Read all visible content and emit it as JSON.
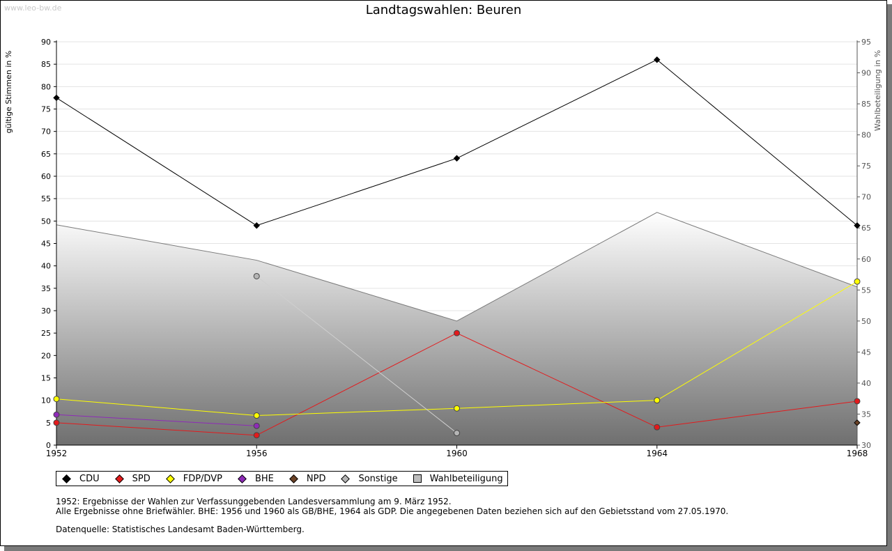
{
  "watermark": "www.leo-bw.de",
  "chart_data": {
    "type": "line",
    "title": "Landtagswahlen: Beuren",
    "ylabel_left": "gültige Stimmen in %",
    "ylabel_right": "Wahlbeteiligung in %",
    "x": [
      "1952",
      "1956",
      "1960",
      "1964",
      "1968"
    ],
    "ylim_left": [
      0,
      90
    ],
    "ylim_right": [
      30,
      95
    ],
    "yticks_left": [
      "0",
      "5",
      "10",
      "15",
      "20",
      "25",
      "30",
      "35",
      "40",
      "45",
      "50",
      "55",
      "60",
      "65",
      "70",
      "75",
      "80",
      "85",
      "90"
    ],
    "yticks_right": [
      "30",
      "35",
      "40",
      "45",
      "50",
      "55",
      "60",
      "65",
      "70",
      "75",
      "80",
      "85",
      "90",
      "95"
    ],
    "grid": true,
    "legend_position": "bottom-left",
    "series": [
      {
        "name": "CDU",
        "color": "#000000",
        "values": [
          77.5,
          49.0,
          64.0,
          86.0,
          49.0
        ]
      },
      {
        "name": "SPD",
        "color": "#e31a1c",
        "values": [
          5.0,
          2.2,
          25.0,
          4.0,
          9.8
        ]
      },
      {
        "name": "FDP/DVP",
        "color": "#ffff00",
        "values": [
          10.3,
          6.6,
          8.2,
          10.0,
          36.5
        ]
      },
      {
        "name": "BHE",
        "color": "#8e2ab8",
        "values": [
          6.8,
          4.3,
          null,
          null,
          null
        ]
      },
      {
        "name": "NPD",
        "color": "#6b4226",
        "values": [
          null,
          null,
          null,
          null,
          5.0
        ]
      },
      {
        "name": "Sonstige",
        "color": "#b5b5b5",
        "values": [
          null,
          37.7,
          2.7,
          null,
          null
        ]
      }
    ],
    "turnout": {
      "name": "Wahlbeteiligung",
      "axis": "right",
      "values": [
        65.5,
        59.8,
        50.0,
        67.5,
        55.5
      ]
    }
  },
  "notes": {
    "line1": "1952: Ergebnisse der Wahlen zur Verfassunggebenden Landesversammlung am 9. März 1952.",
    "line2": "Alle Ergebnisse ohne Briefwähler. BHE: 1956 und 1960 als GB/BHE, 1964 als GDP. Die angegebenen Daten beziehen sich auf den Gebietsstand vom 27.05.1970.",
    "source": "Datenquelle: Statistisches Landesamt Baden-Württemberg."
  }
}
